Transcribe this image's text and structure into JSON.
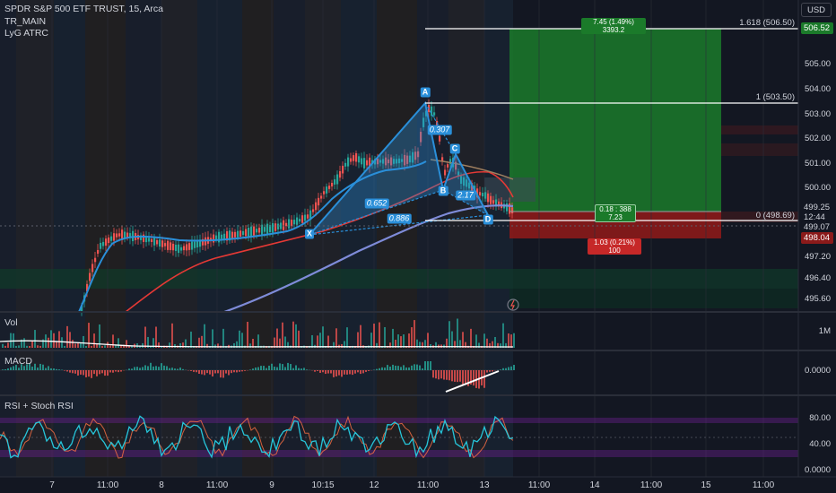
{
  "header": {
    "symbol_title": "SPDR S&P 500 ETF TRUST, 15, Arca",
    "indicators": [
      "TR_MAIN",
      "LyG ATRC"
    ],
    "currency_button": "USD"
  },
  "price_axis": {
    "labels": [
      "506.52",
      "505.00",
      "504.00",
      "503.00",
      "502.00",
      "501.00",
      "500.00",
      "499.25",
      "12:44",
      "499.07",
      "498.04",
      "497.20",
      "496.40",
      "495.60"
    ],
    "tags": {
      "target": "506.52",
      "current_price": "499.25",
      "countdown": "12:44",
      "level": "499.07",
      "stop": "498.04"
    }
  },
  "fib_labels": {
    "top": "1.618 (506.50)",
    "mid": "1 (503.50)",
    "zero": "0 (498.69)"
  },
  "pattern": {
    "points": [
      "X",
      "A",
      "B",
      "C",
      "D"
    ],
    "ratios": [
      "0.307",
      "0.652",
      "0.886",
      "2.17"
    ]
  },
  "position_tool": {
    "target_label": "7.45 (1.49%) 3393.2",
    "center_line1": "0.18 : 388",
    "center_line2": "7.23",
    "stop_label": "1.03 (0.21%) 100"
  },
  "panes": {
    "volume": {
      "label": "Vol",
      "axis_value": "1M"
    },
    "macd": {
      "label": "MACD",
      "axis_value": "0.0000"
    },
    "rsi": {
      "label": "RSI + Stoch RSI",
      "axis_values": [
        "80.00",
        "40.00",
        "0.0000"
      ]
    }
  },
  "time_axis": [
    "7",
    "11:00",
    "8",
    "11:00",
    "9",
    "10:15",
    "12",
    "11:00",
    "13",
    "11:00",
    "14",
    "11:00",
    "15",
    "11:00"
  ],
  "colors": {
    "background": "#131722",
    "bull": "#26a69a",
    "bear": "#ef5350",
    "pattern": "#2a8fd9",
    "rsi": "#26c6da",
    "stoch": "#ff7043",
    "target_zone": "#1b7a2a",
    "stop_zone": "#8b1a1a"
  }
}
